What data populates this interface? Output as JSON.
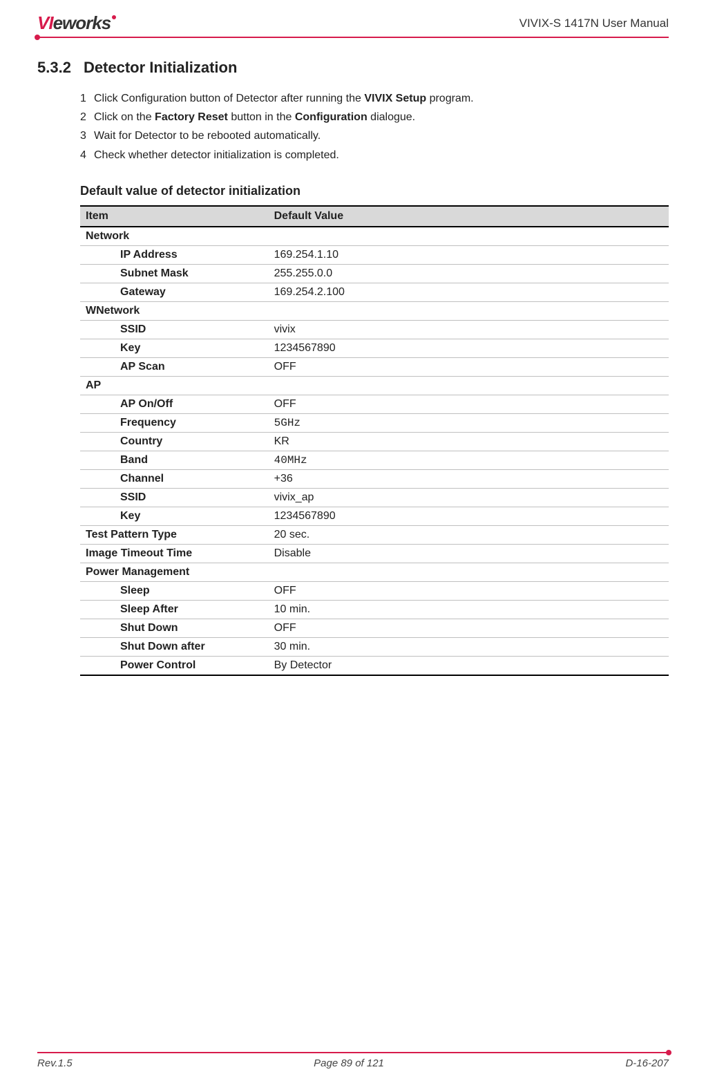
{
  "header": {
    "logo_part1": "VI",
    "logo_part2": "eworks",
    "doc_title": "VIVIX-S 1417N User Manual"
  },
  "section": {
    "number": "5.3.2",
    "title": "Detector Initialization"
  },
  "steps": [
    {
      "num": "1",
      "prefix": "Click Configuration button of Detector after running the ",
      "bold": "VIVIX Setup",
      "suffix": " program."
    },
    {
      "num": "2",
      "prefix": "Click on the ",
      "bold": "Factory Reset",
      "mid": " button in the ",
      "bold2": "Configuration",
      "suffix": " dialogue."
    },
    {
      "num": "3",
      "prefix": "Wait for Detector to be rebooted automatically.",
      "bold": "",
      "suffix": ""
    },
    {
      "num": "4",
      "prefix": "Check whether detector initialization is completed.",
      "bold": "",
      "suffix": ""
    }
  ],
  "subheading": "Default value of detector initialization",
  "table": {
    "header_item": "Item",
    "header_value": "Default Value",
    "sections": [
      {
        "category": "Network",
        "rows": [
          {
            "item": "IP Address",
            "value": "169.254.1.10"
          },
          {
            "item": "Subnet Mask",
            "value": "255.255.0.0"
          },
          {
            "item": "Gateway",
            "value": "169.254.2.100"
          }
        ]
      },
      {
        "category": "WNetwork",
        "rows": [
          {
            "item": "SSID",
            "value": "vivix"
          },
          {
            "item": "Key",
            "value": "1234567890"
          },
          {
            "item": "AP Scan",
            "value": "OFF"
          }
        ]
      },
      {
        "category": "AP",
        "rows": [
          {
            "item": "AP On/Off",
            "value": "OFF"
          },
          {
            "item": "Frequency",
            "value": "5GHz",
            "mono": true
          },
          {
            "item": "Country",
            "value": "KR"
          },
          {
            "item": "Band",
            "value": "40MHz",
            "mono": true
          },
          {
            "item": "Channel",
            "value": "+36"
          },
          {
            "item": "SSID",
            "value": "vivix_ap"
          },
          {
            "item": "Key",
            "value": "1234567890"
          }
        ]
      }
    ],
    "top_rows": [
      {
        "item": "Test Pattern Type",
        "value": "20 sec."
      },
      {
        "item": "Image Timeout Time",
        "value": "Disable"
      }
    ],
    "power_section": {
      "category": "Power Management",
      "rows": [
        {
          "item": "Sleep",
          "value": "OFF"
        },
        {
          "item": "Sleep After",
          "value": "10 min."
        },
        {
          "item": "Shut Down",
          "value": "OFF"
        },
        {
          "item": "Shut Down after",
          "value": "30 min."
        },
        {
          "item": "Power Control",
          "value": "By Detector"
        }
      ]
    }
  },
  "footer": {
    "rev": "Rev.1.5",
    "page": "Page 89 of 121",
    "doc_num": "D-16-207"
  },
  "colors": {
    "brand": "#d71b4c",
    "header_bg": "#d9d9d9",
    "border": "#bfbfbf"
  }
}
